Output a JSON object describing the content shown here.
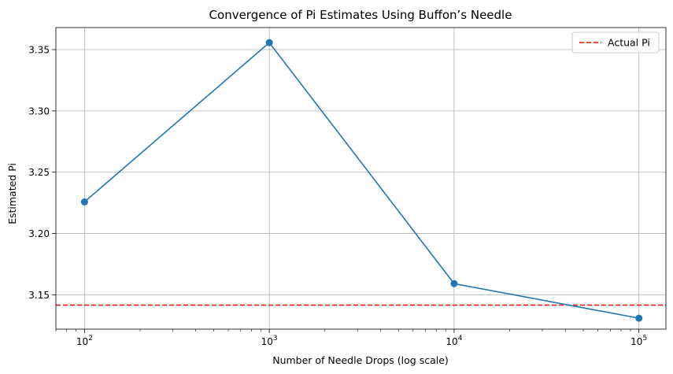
{
  "chart_data": {
    "type": "line",
    "title": "Convergence of Pi Estimates Using Buffon’s Needle",
    "xlabel": "Number of Needle Drops (log scale)",
    "ylabel": "Estimated Pi",
    "x_scale": "log",
    "xlim": [
      70,
      140000
    ],
    "ylim": [
      3.122,
      3.368
    ],
    "x_ticks": [
      {
        "value": 100,
        "base": "10",
        "exp": "2"
      },
      {
        "value": 1000,
        "base": "10",
        "exp": "3"
      },
      {
        "value": 10000,
        "base": "10",
        "exp": "4"
      },
      {
        "value": 100000,
        "base": "10",
        "exp": "5"
      }
    ],
    "y_ticks": [
      {
        "value": 3.15,
        "label": "3.15"
      },
      {
        "value": 3.2,
        "label": "3.20"
      },
      {
        "value": 3.25,
        "label": "3.25"
      },
      {
        "value": 3.3,
        "label": "3.30"
      },
      {
        "value": 3.35,
        "label": "3.35"
      }
    ],
    "series": [
      {
        "x": [
          100,
          1000,
          10000,
          100000
        ],
        "y": [
          3.2258,
          3.3557,
          3.1591,
          3.1309
        ],
        "color": "#1f77b4",
        "marker": "circle"
      }
    ],
    "reference_lines": [
      {
        "orientation": "horizontal",
        "value": 3.14159,
        "label": "Actual Pi",
        "color": "#ff0000",
        "style": "dashed"
      }
    ],
    "grid": true,
    "legend": {
      "position": "top-right",
      "entries": [
        "Actual Pi"
      ]
    }
  }
}
